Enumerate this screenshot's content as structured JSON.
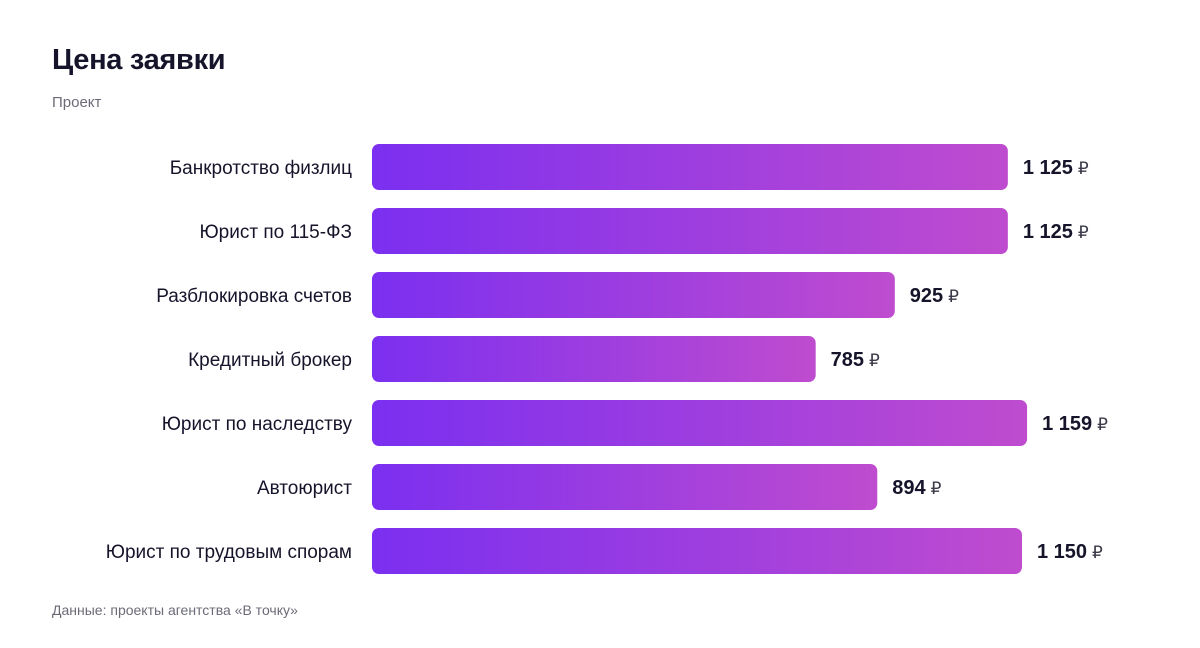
{
  "header": {
    "title": "Цена заявки",
    "subtitle": "Проект"
  },
  "footer": {
    "source": "Данные: проекты агентства «В точку»"
  },
  "colors": {
    "bar_start": "#7b2ff0",
    "bar_end": "#bf4ccf",
    "text": "#15142a",
    "muted": "#6b6b78"
  },
  "chart_data": {
    "type": "bar",
    "orientation": "horizontal",
    "title": "Цена заявки",
    "subtitle": "Проект",
    "categories": [
      "Банкротство физлиц",
      "Юрист по 115-ФЗ",
      "Разблокировка счетов",
      "Кредитный брокер",
      "Юрист по наследству",
      "Автоюрист",
      "Юрист по трудовым спорам"
    ],
    "values": [
      1125,
      1125,
      925,
      785,
      1159,
      894,
      1150
    ],
    "value_labels": [
      "1 125",
      "1 125",
      "925",
      "785",
      "1 159",
      "894",
      "1 150"
    ],
    "unit": "₽",
    "xlim": [
      0,
      1200
    ],
    "grid": false,
    "legend": "none"
  }
}
